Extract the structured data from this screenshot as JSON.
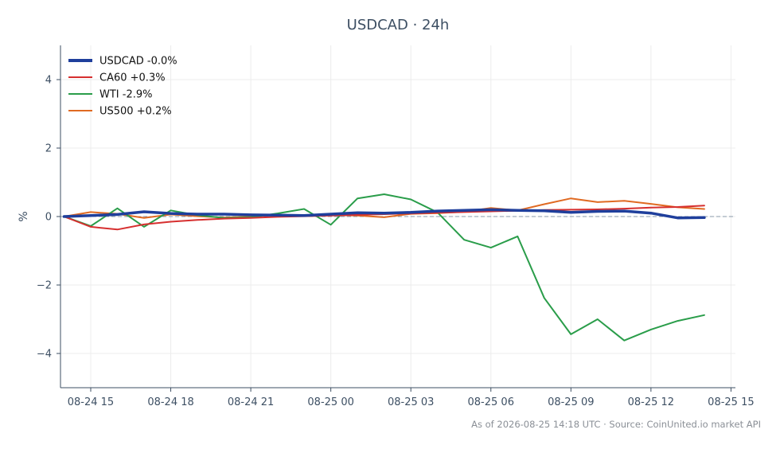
{
  "chart_data": {
    "type": "line",
    "title": "USDCAD · 24h",
    "xlabel": "",
    "ylabel": "%",
    "ylim": [
      -5,
      5
    ],
    "xlim": [
      "08-24 13:52",
      "08-25 15:10"
    ],
    "x_tick_labels": [
      "08-24 15",
      "08-24 18",
      "08-24 21",
      "08-25 00",
      "08-25 03",
      "08-25 06",
      "08-25 09",
      "08-25 12",
      "08-25 15"
    ],
    "y_tick_labels": [
      "−4",
      "−2",
      "0",
      "2",
      "4"
    ],
    "grid": true,
    "zero_line": true,
    "legend_position": "top-left",
    "x": [
      "08-24 14:00",
      "08-24 15:00",
      "08-24 16:00",
      "08-24 17:00",
      "08-24 18:00",
      "08-24 19:00",
      "08-24 20:00",
      "08-24 21:00",
      "08-24 22:00",
      "08-24 23:00",
      "08-25 00:00",
      "08-25 01:00",
      "08-25 02:00",
      "08-25 03:00",
      "08-25 04:00",
      "08-25 05:00",
      "08-25 06:00",
      "08-25 07:00",
      "08-25 08:00",
      "08-25 09:00",
      "08-25 10:00",
      "08-25 11:00",
      "08-25 12:00",
      "08-25 13:00",
      "08-25 14:00"
    ],
    "series": [
      {
        "name": "USDCAD -0.0%",
        "color": "#1f3f9c",
        "values": [
          0.0,
          0.03,
          0.06,
          0.14,
          0.09,
          0.07,
          0.07,
          0.05,
          0.04,
          0.03,
          0.07,
          0.11,
          0.1,
          0.12,
          0.16,
          0.18,
          0.2,
          0.18,
          0.17,
          0.12,
          0.15,
          0.16,
          0.1,
          -0.04,
          -0.03
        ]
      },
      {
        "name": "CA60 +0.3%",
        "color": "#d62f2f",
        "values": [
          0.0,
          -0.3,
          -0.38,
          -0.23,
          -0.15,
          -0.1,
          -0.06,
          -0.04,
          -0.01,
          0.01,
          0.03,
          0.05,
          0.07,
          0.09,
          0.11,
          0.13,
          0.15,
          0.17,
          0.19,
          0.2,
          0.21,
          0.23,
          0.26,
          0.28,
          0.32
        ]
      },
      {
        "name": "WTI -2.9%",
        "color": "#2a9d4a",
        "values": [
          0.0,
          -0.28,
          0.24,
          -0.3,
          0.18,
          0.04,
          -0.04,
          -0.02,
          0.09,
          0.22,
          -0.24,
          0.53,
          0.65,
          0.5,
          0.12,
          -0.68,
          -0.91,
          -0.58,
          -2.38,
          -3.44,
          -3.0,
          -3.62,
          -3.3,
          -3.05,
          -2.88
        ]
      },
      {
        "name": "US500 +0.2%",
        "color": "#e06a22",
        "values": [
          0.0,
          0.13,
          0.08,
          -0.04,
          0.06,
          0.01,
          -0.03,
          0.0,
          0.05,
          0.03,
          0.05,
          0.03,
          -0.02,
          0.08,
          0.1,
          0.14,
          0.25,
          0.18,
          0.36,
          0.53,
          0.42,
          0.46,
          0.37,
          0.27,
          0.22
        ]
      }
    ]
  },
  "footer": "As of 2026-08-25 14:18 UTC · Source: CoinUnited.io market API"
}
